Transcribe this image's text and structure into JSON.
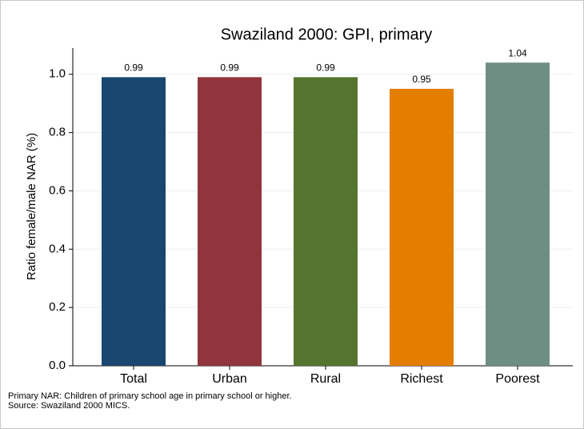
{
  "chart_data": {
    "type": "bar",
    "title": "Swaziland 2000: GPI, primary",
    "ylabel": "Ratio female/male NAR (%)",
    "categories": [
      "Total",
      "Urban",
      "Rural",
      "Richest",
      "Poorest"
    ],
    "values": [
      0.99,
      0.99,
      0.99,
      0.95,
      1.04
    ],
    "colors": [
      "#1a476f",
      "#90353b",
      "#55752f",
      "#e37e00",
      "#6e8e84"
    ],
    "ylim": [
      0,
      1.09
    ],
    "yticks": [
      {
        "value": 0,
        "label": "0.0"
      },
      0.2,
      0.4,
      0.6,
      0.8,
      {
        "value": 1,
        "label": "1.0"
      }
    ],
    "grid": true,
    "notes": [
      "Primary NAR: Children of primary school age in primary school or higher.",
      "Source: Swaziland 2000 MICS."
    ]
  }
}
